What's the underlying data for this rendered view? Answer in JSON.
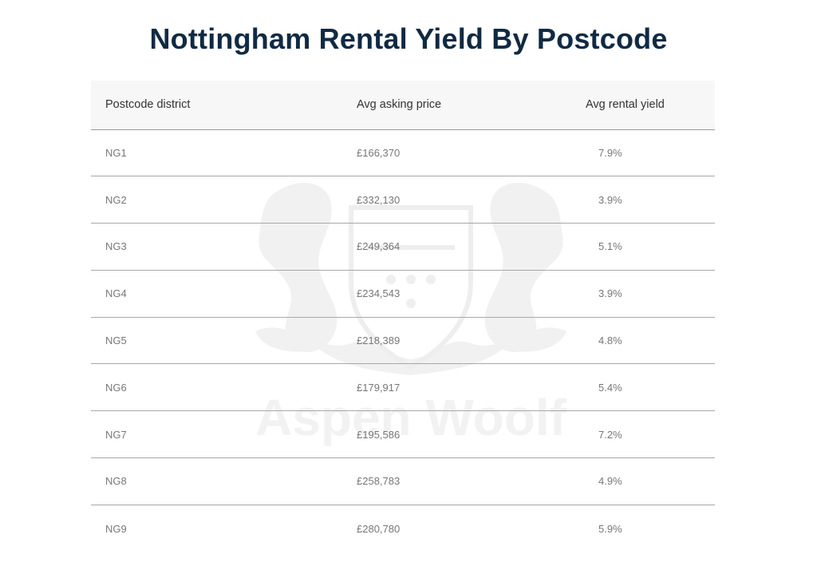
{
  "title": "Nottingham Rental Yield By Postcode",
  "watermark_text": "Aspen Woolf",
  "table": {
    "headers": [
      "Postcode district",
      "Avg asking price",
      "Avg rental yield"
    ],
    "rows": [
      [
        "NG1",
        "£166,370",
        "7.9%"
      ],
      [
        "NG2",
        "£332,130",
        "3.9%"
      ],
      [
        "NG3",
        "£249,364",
        "5.1%"
      ],
      [
        "NG4",
        "£234,543",
        "3.9%"
      ],
      [
        "NG5",
        "£218,389",
        "4.8%"
      ],
      [
        "NG6",
        "£179,917",
        "5.4%"
      ],
      [
        "NG7",
        "£195,586",
        "7.2%"
      ],
      [
        "NG8",
        "£258,783",
        "4.9%"
      ],
      [
        "NG9",
        "£280,780",
        "5.9%"
      ]
    ]
  },
  "colors": {
    "title": "#102a43",
    "header_bg": "#f7f7f7",
    "cell_text": "#777777",
    "divider": "#a8a8a8"
  }
}
